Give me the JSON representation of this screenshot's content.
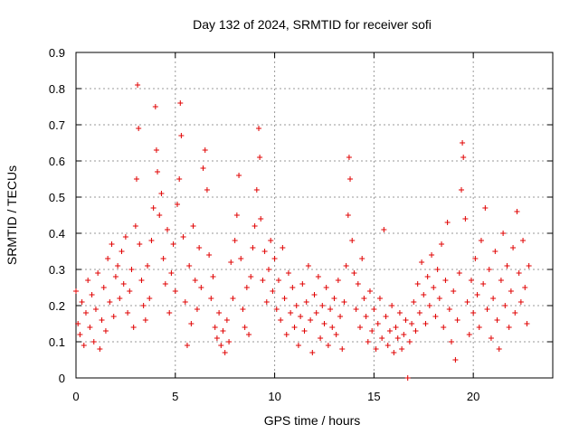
{
  "chart_data": {
    "type": "scatter",
    "title": "Day 132 of 2024, SRMTID for receiver sofi",
    "xlabel": "GPS time / hours",
    "ylabel": "SRMTID / TECUs",
    "xlim": [
      0,
      24
    ],
    "ylim": [
      0,
      0.9
    ],
    "xticks": [
      0,
      5,
      10,
      15,
      20
    ],
    "xtick_labels": [
      "0",
      "5",
      "10",
      "15",
      "20"
    ],
    "yticks": [
      0,
      0.1,
      0.2,
      0.3,
      0.4,
      0.5,
      0.6,
      0.7,
      0.8,
      0.9
    ],
    "ytick_labels": [
      "0",
      "0.1",
      "0.2",
      "0.3",
      "0.4",
      "0.5",
      "0.6",
      "0.7",
      "0.8",
      "0.9"
    ],
    "grid": true,
    "marker": "+",
    "color": "#e00000",
    "series": [
      {
        "name": "SRMTID",
        "points": [
          [
            0.0,
            0.24
          ],
          [
            0.1,
            0.15
          ],
          [
            0.2,
            0.12
          ],
          [
            0.3,
            0.21
          ],
          [
            0.4,
            0.09
          ],
          [
            0.5,
            0.18
          ],
          [
            0.6,
            0.27
          ],
          [
            0.7,
            0.14
          ],
          [
            0.8,
            0.23
          ],
          [
            0.9,
            0.1
          ],
          [
            1.0,
            0.19
          ],
          [
            1.1,
            0.29
          ],
          [
            1.2,
            0.08
          ],
          [
            1.3,
            0.16
          ],
          [
            1.4,
            0.25
          ],
          [
            1.5,
            0.13
          ],
          [
            1.6,
            0.33
          ],
          [
            1.7,
            0.21
          ],
          [
            1.8,
            0.37
          ],
          [
            1.9,
            0.17
          ],
          [
            2.0,
            0.28
          ],
          [
            2.1,
            0.31
          ],
          [
            2.2,
            0.22
          ],
          [
            2.3,
            0.35
          ],
          [
            2.4,
            0.26
          ],
          [
            2.5,
            0.39
          ],
          [
            2.6,
            0.18
          ],
          [
            2.7,
            0.24
          ],
          [
            2.8,
            0.3
          ],
          [
            2.9,
            0.14
          ],
          [
            3.0,
            0.42
          ],
          [
            3.05,
            0.55
          ],
          [
            3.1,
            0.81
          ],
          [
            3.15,
            0.69
          ],
          [
            3.2,
            0.37
          ],
          [
            3.3,
            0.27
          ],
          [
            3.4,
            0.2
          ],
          [
            3.5,
            0.16
          ],
          [
            3.6,
            0.31
          ],
          [
            3.7,
            0.22
          ],
          [
            3.8,
            0.38
          ],
          [
            3.9,
            0.47
          ],
          [
            4.0,
            0.75
          ],
          [
            4.05,
            0.63
          ],
          [
            4.1,
            0.57
          ],
          [
            4.2,
            0.45
          ],
          [
            4.3,
            0.51
          ],
          [
            4.4,
            0.33
          ],
          [
            4.5,
            0.26
          ],
          [
            4.6,
            0.41
          ],
          [
            4.7,
            0.18
          ],
          [
            4.8,
            0.29
          ],
          [
            4.9,
            0.37
          ],
          [
            5.0,
            0.24
          ],
          [
            5.1,
            0.48
          ],
          [
            5.2,
            0.55
          ],
          [
            5.25,
            0.76
          ],
          [
            5.3,
            0.67
          ],
          [
            5.4,
            0.39
          ],
          [
            5.5,
            0.21
          ],
          [
            5.6,
            0.09
          ],
          [
            5.7,
            0.31
          ],
          [
            5.8,
            0.15
          ],
          [
            5.9,
            0.42
          ],
          [
            6.0,
            0.27
          ],
          [
            6.1,
            0.19
          ],
          [
            6.2,
            0.36
          ],
          [
            6.3,
            0.25
          ],
          [
            6.4,
            0.58
          ],
          [
            6.5,
            0.63
          ],
          [
            6.6,
            0.52
          ],
          [
            6.7,
            0.34
          ],
          [
            6.8,
            0.22
          ],
          [
            6.9,
            0.28
          ],
          [
            7.0,
            0.14
          ],
          [
            7.1,
            0.11
          ],
          [
            7.2,
            0.18
          ],
          [
            7.3,
            0.09
          ],
          [
            7.4,
            0.13
          ],
          [
            7.5,
            0.07
          ],
          [
            7.6,
            0.16
          ],
          [
            7.7,
            0.1
          ],
          [
            7.8,
            0.32
          ],
          [
            7.9,
            0.22
          ],
          [
            8.0,
            0.38
          ],
          [
            8.1,
            0.45
          ],
          [
            8.2,
            0.56
          ],
          [
            8.3,
            0.33
          ],
          [
            8.4,
            0.19
          ],
          [
            8.5,
            0.14
          ],
          [
            8.6,
            0.25
          ],
          [
            8.7,
            0.12
          ],
          [
            8.8,
            0.28
          ],
          [
            8.9,
            0.36
          ],
          [
            9.0,
            0.42
          ],
          [
            9.1,
            0.52
          ],
          [
            9.2,
            0.69
          ],
          [
            9.25,
            0.61
          ],
          [
            9.3,
            0.44
          ],
          [
            9.4,
            0.27
          ],
          [
            9.5,
            0.35
          ],
          [
            9.6,
            0.21
          ],
          [
            9.7,
            0.3
          ],
          [
            9.8,
            0.38
          ],
          [
            9.9,
            0.24
          ],
          [
            10.0,
            0.33
          ],
          [
            10.1,
            0.19
          ],
          [
            10.2,
            0.27
          ],
          [
            10.3,
            0.16
          ],
          [
            10.4,
            0.36
          ],
          [
            10.5,
            0.22
          ],
          [
            10.6,
            0.12
          ],
          [
            10.7,
            0.29
          ],
          [
            10.8,
            0.18
          ],
          [
            10.9,
            0.25
          ],
          [
            11.0,
            0.14
          ],
          [
            11.1,
            0.2
          ],
          [
            11.2,
            0.09
          ],
          [
            11.3,
            0.17
          ],
          [
            11.4,
            0.26
          ],
          [
            11.5,
            0.13
          ],
          [
            11.6,
            0.21
          ],
          [
            11.7,
            0.31
          ],
          [
            11.8,
            0.16
          ],
          [
            11.9,
            0.07
          ],
          [
            12.0,
            0.23
          ],
          [
            12.1,
            0.18
          ],
          [
            12.2,
            0.28
          ],
          [
            12.3,
            0.11
          ],
          [
            12.4,
            0.2
          ],
          [
            12.5,
            0.15
          ],
          [
            12.6,
            0.25
          ],
          [
            12.7,
            0.09
          ],
          [
            12.8,
            0.19
          ],
          [
            12.9,
            0.14
          ],
          [
            13.0,
            0.22
          ],
          [
            13.1,
            0.12
          ],
          [
            13.2,
            0.27
          ],
          [
            13.3,
            0.17
          ],
          [
            13.4,
            0.08
          ],
          [
            13.5,
            0.21
          ],
          [
            13.6,
            0.31
          ],
          [
            13.7,
            0.45
          ],
          [
            13.75,
            0.61
          ],
          [
            13.8,
            0.55
          ],
          [
            13.9,
            0.38
          ],
          [
            14.0,
            0.29
          ],
          [
            14.1,
            0.19
          ],
          [
            14.2,
            0.26
          ],
          [
            14.3,
            0.14
          ],
          [
            14.4,
            0.33
          ],
          [
            14.5,
            0.22
          ],
          [
            14.6,
            0.17
          ],
          [
            14.7,
            0.1
          ],
          [
            14.8,
            0.24
          ],
          [
            14.9,
            0.13
          ],
          [
            15.0,
            0.19
          ],
          [
            15.1,
            0.08
          ],
          [
            15.2,
            0.15
          ],
          [
            15.3,
            0.22
          ],
          [
            15.4,
            0.11
          ],
          [
            15.5,
            0.41
          ],
          [
            15.6,
            0.17
          ],
          [
            15.7,
            0.09
          ],
          [
            15.8,
            0.13
          ],
          [
            15.9,
            0.2
          ],
          [
            16.0,
            0.07
          ],
          [
            16.1,
            0.14
          ],
          [
            16.2,
            0.11
          ],
          [
            16.3,
            0.18
          ],
          [
            16.4,
            0.08
          ],
          [
            16.5,
            0.12
          ],
          [
            16.6,
            0.16
          ],
          [
            16.7,
            0.0
          ],
          [
            16.8,
            0.1
          ],
          [
            16.9,
            0.15
          ],
          [
            17.0,
            0.21
          ],
          [
            17.1,
            0.13
          ],
          [
            17.2,
            0.26
          ],
          [
            17.3,
            0.18
          ],
          [
            17.4,
            0.32
          ],
          [
            17.5,
            0.23
          ],
          [
            17.6,
            0.15
          ],
          [
            17.7,
            0.28
          ],
          [
            17.8,
            0.2
          ],
          [
            17.9,
            0.34
          ],
          [
            18.0,
            0.25
          ],
          [
            18.1,
            0.17
          ],
          [
            18.2,
            0.3
          ],
          [
            18.3,
            0.22
          ],
          [
            18.4,
            0.37
          ],
          [
            18.5,
            0.14
          ],
          [
            18.6,
            0.27
          ],
          [
            18.7,
            0.43
          ],
          [
            18.8,
            0.19
          ],
          [
            18.9,
            0.1
          ],
          [
            19.0,
            0.24
          ],
          [
            19.1,
            0.05
          ],
          [
            19.2,
            0.16
          ],
          [
            19.3,
            0.29
          ],
          [
            19.4,
            0.52
          ],
          [
            19.45,
            0.65
          ],
          [
            19.5,
            0.61
          ],
          [
            19.6,
            0.44
          ],
          [
            19.7,
            0.21
          ],
          [
            19.8,
            0.12
          ],
          [
            19.9,
            0.27
          ],
          [
            20.0,
            0.18
          ],
          [
            20.1,
            0.33
          ],
          [
            20.2,
            0.23
          ],
          [
            20.3,
            0.14
          ],
          [
            20.4,
            0.38
          ],
          [
            20.5,
            0.26
          ],
          [
            20.6,
            0.47
          ],
          [
            20.7,
            0.19
          ],
          [
            20.8,
            0.3
          ],
          [
            20.9,
            0.11
          ],
          [
            21.0,
            0.22
          ],
          [
            21.1,
            0.35
          ],
          [
            21.2,
            0.16
          ],
          [
            21.3,
            0.08
          ],
          [
            21.4,
            0.27
          ],
          [
            21.5,
            0.4
          ],
          [
            21.6,
            0.2
          ],
          [
            21.7,
            0.31
          ],
          [
            21.8,
            0.14
          ],
          [
            21.9,
            0.24
          ],
          [
            22.0,
            0.36
          ],
          [
            22.1,
            0.18
          ],
          [
            22.2,
            0.46
          ],
          [
            22.3,
            0.29
          ],
          [
            22.4,
            0.21
          ],
          [
            22.5,
            0.38
          ],
          [
            22.6,
            0.25
          ],
          [
            22.7,
            0.15
          ],
          [
            22.8,
            0.31
          ]
        ]
      }
    ]
  }
}
